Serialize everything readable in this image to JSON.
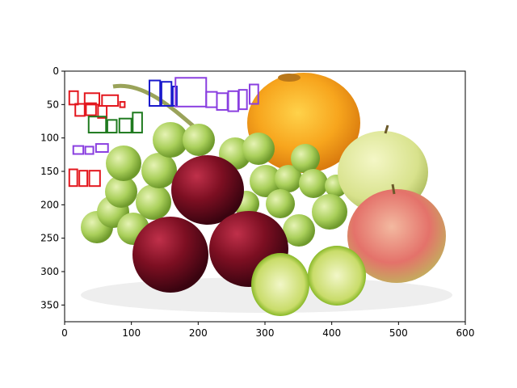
{
  "figure": {
    "image_description_icon": "fruit-still-life-photo",
    "x_ticks": [
      "0",
      "100",
      "200",
      "300",
      "400",
      "500",
      "600"
    ],
    "y_ticks": [
      "0",
      "50",
      "100",
      "150",
      "200",
      "250",
      "300",
      "350"
    ],
    "x_range": [
      0,
      600
    ],
    "y_range": [
      375,
      0
    ],
    "colors": {
      "red": "#e3171e",
      "blue": "#1a1acc",
      "purple": "#8a3fe0",
      "green": "#1f7a1f",
      "axis": "#000000"
    }
  },
  "word_boxes": [
    {
      "group": "red",
      "boxes": [
        [
          7,
          30,
          20,
          50
        ],
        [
          30,
          33,
          52,
          50
        ],
        [
          56,
          36,
          80,
          52
        ],
        [
          83,
          46,
          90,
          54
        ],
        [
          16,
          49,
          30,
          67
        ],
        [
          32,
          48,
          47,
          66
        ],
        [
          50,
          52,
          63,
          70
        ],
        [
          7,
          147,
          19,
          172
        ],
        [
          22,
          149,
          34,
          172
        ],
        [
          37,
          149,
          53,
          172
        ]
      ]
    },
    {
      "group": "green",
      "boxes": [
        [
          36,
          68,
          62,
          92
        ],
        [
          64,
          73,
          78,
          92
        ],
        [
          82,
          71,
          100,
          92
        ],
        [
          102,
          62,
          116,
          92
        ]
      ]
    },
    {
      "group": "blue",
      "boxes": [
        [
          127,
          14,
          143,
          52
        ],
        [
          145,
          16,
          160,
          52
        ],
        [
          162,
          23,
          168,
          52
        ]
      ]
    },
    {
      "group": "purple",
      "boxes": [
        [
          166,
          10,
          212,
          53
        ],
        [
          212,
          31,
          228,
          54
        ],
        [
          228,
          33,
          244,
          58
        ],
        [
          245,
          30,
          260,
          60
        ],
        [
          261,
          28,
          273,
          57
        ],
        [
          277,
          20,
          290,
          49
        ],
        [
          13,
          112,
          28,
          124
        ],
        [
          31,
          113,
          43,
          124
        ],
        [
          47,
          109,
          65,
          121
        ]
      ]
    }
  ]
}
